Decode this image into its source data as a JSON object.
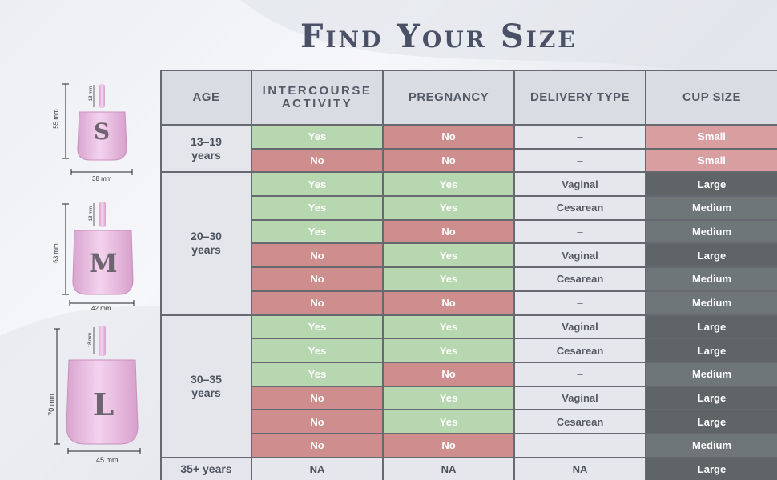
{
  "title": "Find Your Size",
  "headers": [
    "AGE",
    "INTERCOURSE ACTIVITY",
    "PREGNANCY",
    "DELIVERY TYPE",
    "CUP SIZE"
  ],
  "groups": [
    {
      "age": "13–19 years",
      "rows": [
        [
          "Yes",
          "No",
          "–",
          "Small"
        ],
        [
          "No",
          "No",
          "–",
          "Small"
        ]
      ]
    },
    {
      "age": "20–30 years",
      "rows": [
        [
          "Yes",
          "Yes",
          "Vaginal",
          "Large"
        ],
        [
          "Yes",
          "Yes",
          "Cesarean",
          "Medium"
        ],
        [
          "Yes",
          "No",
          "–",
          "Medium"
        ],
        [
          "No",
          "Yes",
          "Vaginal",
          "Large"
        ],
        [
          "No",
          "Yes",
          "Cesarean",
          "Medium"
        ],
        [
          "No",
          "No",
          "–",
          "Medium"
        ]
      ]
    },
    {
      "age": "30–35 years",
      "rows": [
        [
          "Yes",
          "Yes",
          "Vaginal",
          "Large"
        ],
        [
          "Yes",
          "Yes",
          "Cesarean",
          "Large"
        ],
        [
          "Yes",
          "No",
          "–",
          "Medium"
        ],
        [
          "No",
          "Yes",
          "Vaginal",
          "Large"
        ],
        [
          "No",
          "Yes",
          "Cesarean",
          "Large"
        ],
        [
          "No",
          "No",
          "–",
          "Medium"
        ]
      ]
    },
    {
      "age": "35+ years",
      "rows": [
        [
          "NA",
          "NA",
          "NA",
          "Large"
        ]
      ]
    }
  ],
  "cups": [
    {
      "letter": "S",
      "height_label": "55 mm",
      "stem_label": "18 mm",
      "width_label": "38 mm"
    },
    {
      "letter": "M",
      "height_label": "63 mm",
      "stem_label": "18 mm",
      "width_label": "42 mm"
    },
    {
      "letter": "L",
      "height_label": "70 mm",
      "stem_label": "18 mm",
      "width_label": "45 mm"
    }
  ],
  "colors": {
    "yes": "#b7d7b0",
    "no": "#cf8e8e",
    "small": "#d99ea0",
    "large": "#5f6566",
    "medium": "#6e7678",
    "cup_fill": "#e9b8e0"
  }
}
